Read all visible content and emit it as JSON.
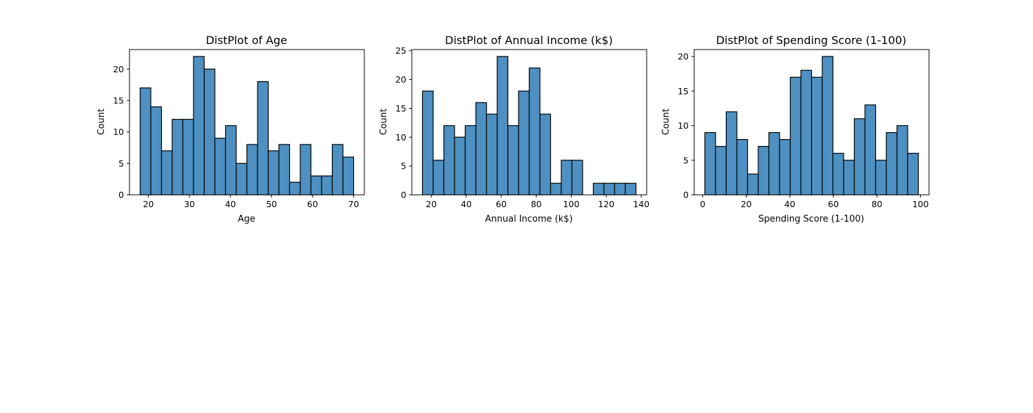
{
  "chart_data": [
    {
      "type": "bar",
      "title": "DistPlot of Age",
      "xlabel": "Age",
      "ylabel": "Count",
      "bin_edges": [
        18.0,
        20.6,
        23.2,
        25.8,
        28.4,
        31.0,
        33.6,
        36.2,
        38.8,
        41.4,
        44.0,
        46.6,
        49.2,
        51.8,
        54.4,
        57.0,
        59.6,
        62.2,
        64.8,
        67.4,
        70.0
      ],
      "values": [
        17,
        14,
        7,
        12,
        12,
        22,
        20,
        9,
        11,
        5,
        8,
        18,
        7,
        8,
        2,
        8,
        3,
        3,
        8,
        6
      ],
      "xlim": [
        15.4,
        72.6
      ],
      "ylim": [
        0,
        23.1
      ],
      "xticks": [
        20,
        30,
        40,
        50,
        60,
        70
      ],
      "yticks": [
        0,
        5,
        10,
        15,
        20
      ],
      "color": "#4e90c2"
    },
    {
      "type": "bar",
      "title": "DistPlot of Annual Income (k$)",
      "xlabel": "Annual Income (k$)",
      "ylabel": "Count",
      "bin_edges": [
        15.0,
        21.1,
        27.2,
        33.3,
        39.4,
        45.5,
        51.6,
        57.7,
        63.8,
        69.9,
        76.0,
        82.1,
        88.2,
        94.3,
        100.4,
        106.5,
        112.6,
        118.7,
        124.8,
        130.9,
        137.0
      ],
      "values": [
        18,
        6,
        12,
        10,
        12,
        16,
        14,
        24,
        12,
        18,
        22,
        14,
        2,
        6,
        6,
        0,
        2,
        2,
        2,
        2
      ],
      "xlim": [
        8.9,
        143.1
      ],
      "ylim": [
        0,
        25.2
      ],
      "xticks": [
        20,
        40,
        60,
        80,
        100,
        120,
        140
      ],
      "yticks": [
        0,
        5,
        10,
        15,
        20,
        25
      ],
      "color": "#4e90c2"
    },
    {
      "type": "bar",
      "title": "DistPlot of Spending Score (1-100)",
      "xlabel": "Spending Score (1-100)",
      "ylabel": "Count",
      "bin_edges": [
        1.0,
        5.9,
        10.8,
        15.7,
        20.6,
        25.5,
        30.4,
        35.3,
        40.2,
        45.1,
        50.0,
        54.9,
        59.8,
        64.7,
        69.6,
        74.5,
        79.4,
        84.3,
        89.2,
        94.1,
        99.0
      ],
      "values": [
        9,
        7,
        12,
        8,
        3,
        7,
        9,
        8,
        17,
        18,
        17,
        20,
        6,
        5,
        11,
        13,
        5,
        9,
        10,
        6
      ],
      "xlim": [
        -3.9,
        103.9
      ],
      "ylim": [
        0,
        21.0
      ],
      "xticks": [
        0,
        20,
        40,
        60,
        80,
        100
      ],
      "yticks": [
        0,
        5,
        10,
        15,
        20
      ],
      "color": "#4e90c2"
    }
  ]
}
